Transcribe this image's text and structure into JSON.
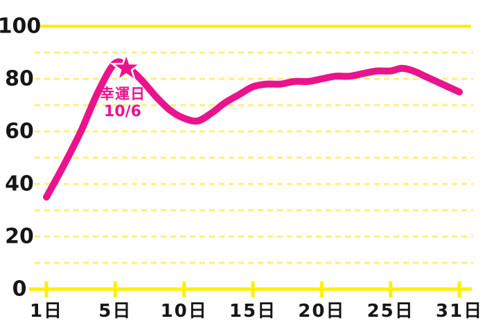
{
  "page": {
    "background": "#ffffff"
  },
  "colors": {
    "line_pink": "#e9148b",
    "solid_grid_yellow": "#ffef00",
    "dashed_grid_yellow": "#fbf176",
    "axis_label_black": "#161616",
    "star_outline_white": "#ffffff"
  },
  "annotation": {
    "line1": "幸運日",
    "line2": "10/6",
    "marker": "star",
    "marker_day": 6,
    "marker_value": 84
  },
  "chart_data": {
    "type": "line",
    "title": "",
    "xlabel": "",
    "ylabel": "",
    "legend": "none",
    "grid": "dashed horizontal every 10, solid at 0 and 100",
    "ylim": [
      0,
      100
    ],
    "grid_step": 10,
    "y_ticks": [
      0,
      20,
      40,
      60,
      80,
      100
    ],
    "y_tick_labels": [
      "0",
      "20",
      "40",
      "60",
      "80",
      "100"
    ],
    "x_tick_days": [
      1,
      5,
      10,
      15,
      20,
      25,
      31
    ],
    "x_tick_labels": [
      "1日",
      "5日",
      "10日",
      "15日",
      "20日",
      "25日",
      "31日"
    ],
    "days": [
      1,
      2,
      3,
      4,
      5,
      6,
      7,
      8,
      9,
      10,
      11,
      12,
      13,
      14,
      15,
      16,
      17,
      18,
      19,
      20,
      21,
      22,
      23,
      24,
      25,
      26,
      27,
      28,
      29,
      30,
      31
    ],
    "values": [
      35,
      47,
      60,
      75,
      86,
      84,
      79,
      73,
      68,
      65,
      64,
      67,
      71,
      74,
      77,
      78,
      78,
      79,
      79,
      80,
      81,
      81,
      82,
      83,
      83,
      84,
      83,
      81,
      79,
      77,
      75
    ]
  }
}
